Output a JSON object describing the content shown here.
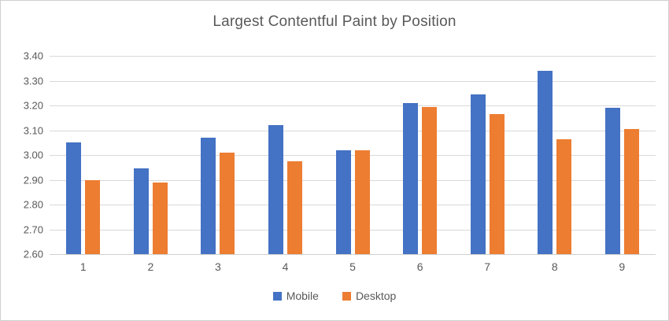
{
  "window": {
    "background_color": "#ffffff",
    "border_color": "#cfcfcf"
  },
  "chart_data": {
    "type": "bar",
    "title": "Largest Contentful Paint by Position",
    "categories": [
      "1",
      "2",
      "3",
      "4",
      "5",
      "6",
      "7",
      "8",
      "9"
    ],
    "series": [
      {
        "name": "Mobile",
        "color": "#4472C4",
        "values": [
          3.05,
          2.945,
          3.07,
          3.12,
          3.02,
          3.21,
          3.245,
          3.34,
          3.19
        ]
      },
      {
        "name": "Desktop",
        "color": "#ED7D31",
        "values": [
          2.9,
          2.89,
          3.01,
          2.975,
          3.02,
          3.195,
          3.165,
          3.065,
          3.105
        ]
      }
    ],
    "xlabel": "",
    "ylabel": "",
    "ylim": [
      2.6,
      3.4
    ],
    "ytick_step": 0.1,
    "ytick_labels": [
      "3.40",
      "3.30",
      "3.20",
      "3.10",
      "3.00",
      "2.90",
      "2.80",
      "2.70",
      "2.60"
    ],
    "grid": true,
    "legend_position": "bottom",
    "colors": {
      "text": "#595959",
      "gridline": "#d9d9d9",
      "axis_line": "#d0d0d0"
    }
  }
}
